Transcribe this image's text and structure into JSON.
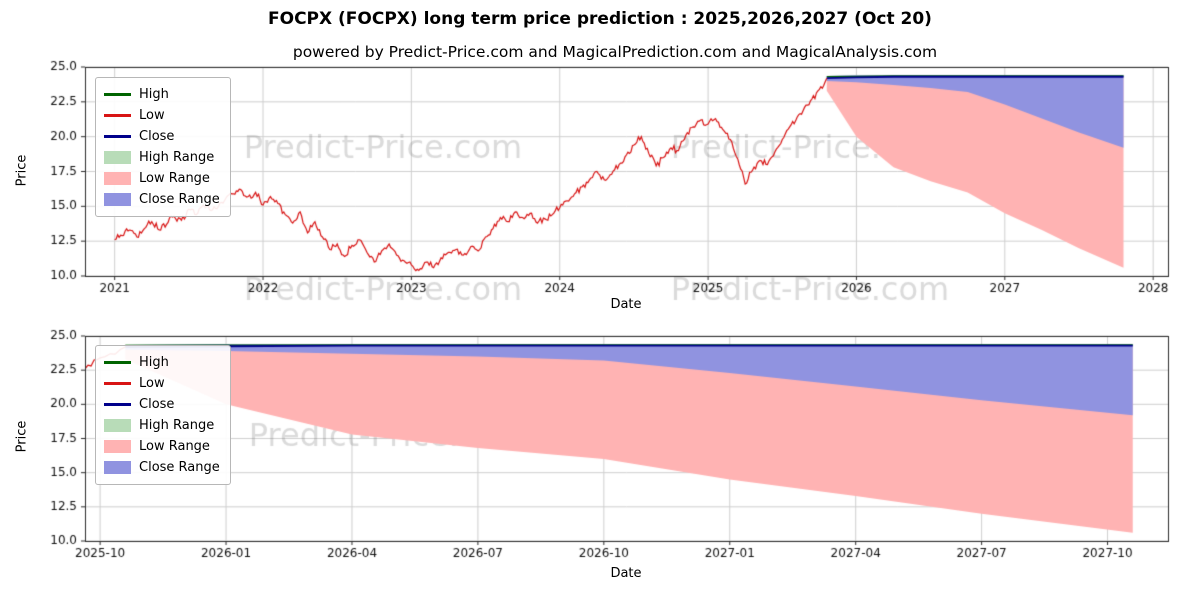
{
  "page": {
    "title": "FOCPX (FOCPX) long term price prediction : 2025,2026,2027 (Oct 20)",
    "subtitle": "powered by Predict-Price.com and MagicalPrediction.com and MagicalAnalysis.com"
  },
  "watermark": {
    "text": "Predict-Price.com",
    "color_hint": "#d0d0d0"
  },
  "legend": {
    "items": [
      {
        "label": "High",
        "type": "line",
        "color": "#006400"
      },
      {
        "label": "Low",
        "type": "line",
        "color": "#d81414"
      },
      {
        "label": "Close",
        "type": "line",
        "color": "#00008b"
      },
      {
        "label": "High Range",
        "type": "patch",
        "color": "#b8dcb8"
      },
      {
        "label": "Low Range",
        "type": "patch",
        "color": "#ffb3b3"
      },
      {
        "label": "Close Range",
        "type": "patch",
        "color": "#9093e0"
      }
    ]
  },
  "chart_data": [
    {
      "type": "line",
      "title": "powered by Predict-Price.com and MagicalPrediction.com and MagicalAnalysis.com",
      "xlabel": "Date",
      "ylabel": "Price",
      "xlim": [
        2020.8,
        2028.1
      ],
      "ylim": [
        10,
        25
      ],
      "grid": true,
      "legend_position": "upper-left",
      "xticks": {
        "values": [
          2021,
          2022,
          2023,
          2024,
          2025,
          2026,
          2027,
          2028
        ],
        "labels": [
          "2021",
          "2022",
          "2023",
          "2024",
          "2025",
          "2026",
          "2027",
          "2028"
        ]
      },
      "yticks": {
        "values": [
          10,
          12.5,
          15,
          17.5,
          20,
          22.5,
          25
        ],
        "labels": [
          "10.0",
          "12.5",
          "15.0",
          "17.5",
          "20.0",
          "22.5",
          "25.0"
        ]
      },
      "series": {
        "history": {
          "name": "Low",
          "color": "#d81414",
          "x": [
            2021.0,
            2021.05,
            2021.1,
            2021.15,
            2021.2,
            2021.25,
            2021.3,
            2021.35,
            2021.4,
            2021.45,
            2021.5,
            2021.55,
            2021.6,
            2021.65,
            2021.7,
            2021.75,
            2021.8,
            2021.85,
            2021.9,
            2021.95,
            2022.0,
            2022.05,
            2022.1,
            2022.15,
            2022.2,
            2022.25,
            2022.3,
            2022.35,
            2022.4,
            2022.45,
            2022.5,
            2022.55,
            2022.6,
            2022.65,
            2022.7,
            2022.75,
            2022.8,
            2022.85,
            2022.9,
            2022.95,
            2023.0,
            2023.05,
            2023.1,
            2023.15,
            2023.2,
            2023.25,
            2023.3,
            2023.35,
            2023.4,
            2023.45,
            2023.5,
            2023.55,
            2023.6,
            2023.65,
            2023.7,
            2023.75,
            2023.8,
            2023.85,
            2023.9,
            2023.95,
            2024.0,
            2024.05,
            2024.1,
            2024.15,
            2024.2,
            2024.25,
            2024.3,
            2024.35,
            2024.4,
            2024.45,
            2024.5,
            2024.55,
            2024.6,
            2024.65,
            2024.7,
            2024.75,
            2024.8,
            2024.85,
            2024.9,
            2024.95,
            2025.0,
            2025.05,
            2025.1,
            2025.15,
            2025.2,
            2025.25,
            2025.3,
            2025.35,
            2025.4,
            2025.45,
            2025.5,
            2025.55,
            2025.6,
            2025.65,
            2025.7,
            2025.75,
            2025.8
          ],
          "y": [
            12.6,
            12.9,
            13.3,
            12.8,
            13.4,
            13.9,
            13.3,
            13.7,
            14.3,
            14.0,
            14.8,
            14.4,
            15.1,
            14.7,
            15.0,
            15.6,
            15.9,
            16.2,
            15.7,
            16.0,
            15.1,
            15.7,
            15.2,
            14.4,
            13.8,
            14.6,
            13.1,
            13.9,
            12.8,
            11.9,
            12.3,
            11.4,
            12.2,
            12.6,
            11.7,
            11.0,
            11.8,
            12.3,
            11.5,
            11.1,
            10.8,
            10.4,
            11.0,
            10.6,
            11.3,
            11.7,
            11.9,
            11.5,
            12.1,
            11.8,
            12.8,
            13.4,
            14.2,
            13.9,
            14.6,
            14.2,
            14.5,
            13.8,
            14.1,
            14.4,
            14.9,
            15.4,
            15.9,
            16.4,
            16.9,
            17.5,
            16.9,
            17.3,
            18.0,
            18.7,
            19.4,
            20.0,
            18.8,
            17.9,
            18.5,
            19.2,
            19.0,
            20.1,
            20.7,
            21.2,
            20.9,
            21.3,
            20.5,
            19.8,
            18.4,
            16.6,
            17.6,
            18.3,
            18.0,
            18.9,
            19.8,
            20.7,
            21.4,
            22.1,
            22.7,
            23.4,
            24.2
          ]
        },
        "forecast": {
          "x": [
            2025.8,
            2026.0,
            2026.25,
            2026.5,
            2026.75,
            2027.0,
            2027.25,
            2027.5,
            2027.8
          ],
          "high": [
            24.3,
            24.32,
            24.35,
            24.35,
            24.35,
            24.35,
            24.35,
            24.35,
            24.35
          ],
          "close": [
            24.2,
            24.25,
            24.3,
            24.3,
            24.3,
            24.3,
            24.3,
            24.3,
            24.3
          ],
          "range_top": [
            24.35,
            24.4,
            24.4,
            24.4,
            24.4,
            24.4,
            24.4,
            24.4,
            24.4
          ],
          "close_range_bottom": [
            24.0,
            23.9,
            23.7,
            23.5,
            23.2,
            22.3,
            21.3,
            20.3,
            19.2
          ],
          "low_range_bottom": [
            23.3,
            20.0,
            17.8,
            16.8,
            16.0,
            14.5,
            13.3,
            12.0,
            10.6
          ]
        }
      }
    },
    {
      "type": "line",
      "title": "",
      "xlabel": "Date",
      "ylabel": "Price",
      "xlim": [
        2025.72,
        2027.87
      ],
      "ylim": [
        10,
        25
      ],
      "grid": true,
      "legend_position": "upper-left",
      "xticks": {
        "values": [
          2025.75,
          2026.0,
          2026.25,
          2026.5,
          2026.75,
          2027.0,
          2027.25,
          2027.5,
          2027.75
        ],
        "labels": [
          "2025-10",
          "2026-01",
          "2026-04",
          "2026-07",
          "2026-10",
          "2027-01",
          "2027-04",
          "2027-07",
          "2027-10"
        ]
      },
      "yticks": {
        "values": [
          10,
          12.5,
          15,
          17.5,
          20,
          22.5,
          25
        ],
        "labels": [
          "10.0",
          "12.5",
          "15.0",
          "17.5",
          "20.0",
          "22.5",
          "25.0"
        ]
      },
      "series": {
        "history": {
          "name": "Low",
          "color": "#d81414",
          "x": [
            2025.72,
            2025.75,
            2025.8
          ],
          "y": [
            22.6,
            23.4,
            24.2
          ]
        },
        "forecast": {
          "x": [
            2025.8,
            2026.0,
            2026.25,
            2026.5,
            2026.75,
            2027.0,
            2027.25,
            2027.5,
            2027.8
          ],
          "high": [
            24.3,
            24.32,
            24.35,
            24.35,
            24.35,
            24.35,
            24.35,
            24.35,
            24.35
          ],
          "close": [
            24.2,
            24.25,
            24.3,
            24.3,
            24.3,
            24.3,
            24.3,
            24.3,
            24.3
          ],
          "range_top": [
            24.35,
            24.4,
            24.4,
            24.4,
            24.4,
            24.4,
            24.4,
            24.4,
            24.4
          ],
          "close_range_bottom": [
            24.0,
            23.9,
            23.7,
            23.5,
            23.2,
            22.3,
            21.3,
            20.3,
            19.2
          ],
          "low_range_bottom": [
            23.3,
            20.0,
            17.8,
            16.8,
            16.0,
            14.5,
            13.3,
            12.0,
            10.6
          ]
        }
      }
    }
  ]
}
